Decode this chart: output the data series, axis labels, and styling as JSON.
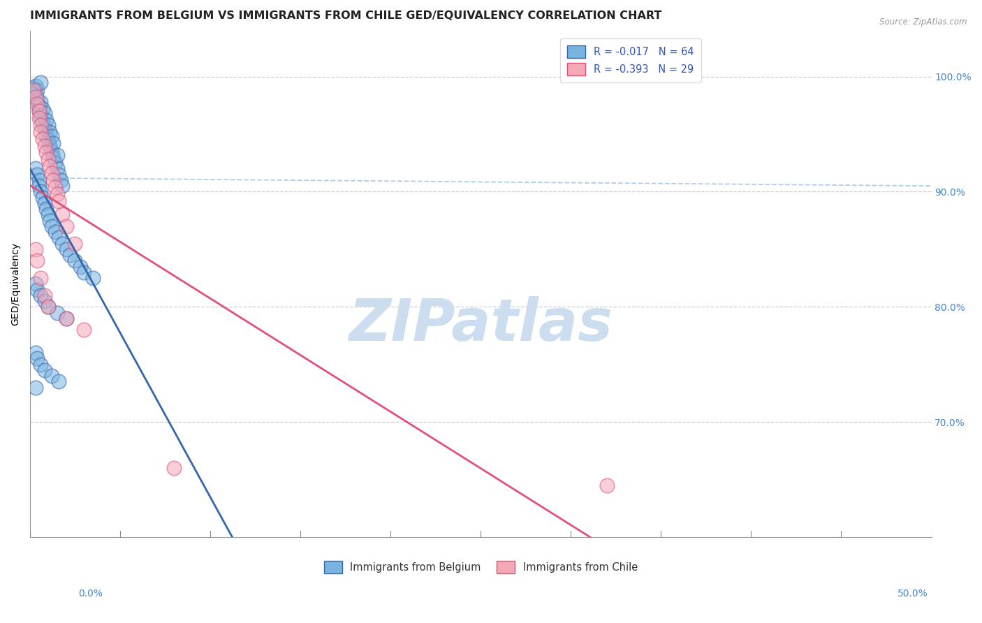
{
  "title": "IMMIGRANTS FROM BELGIUM VS IMMIGRANTS FROM CHILE GED/EQUIVALENCY CORRELATION CHART",
  "source": "Source: ZipAtlas.com",
  "ylabel": "GED/Equivalency",
  "ylabel_right_labels": [
    "100.0%",
    "90.0%",
    "80.0%",
    "70.0%"
  ],
  "ylabel_right_values": [
    1.0,
    0.9,
    0.8,
    0.7
  ],
  "xlim": [
    0.0,
    0.5
  ],
  "ylim": [
    0.6,
    1.04
  ],
  "legend_blue_label": "R = -0.017   N = 64",
  "legend_pink_label": "R = -0.393   N = 29",
  "bottom_legend_blue": "Immigrants from Belgium",
  "bottom_legend_pink": "Immigrants from Chile",
  "watermark": "ZIPatlas",
  "blue_color": "#7ab3e0",
  "pink_color": "#f4a8b8",
  "blue_line_color": "#3366aa",
  "pink_line_color": "#e0507a",
  "dashed_line_color": "#aaccee",
  "grid_color": "#cccccc",
  "background_color": "#ffffff",
  "title_fontsize": 11.5,
  "axis_label_fontsize": 10,
  "tick_fontsize": 10,
  "watermark_color": "#ccddef",
  "blue_scatter_x": [
    0.002,
    0.003,
    0.003,
    0.004,
    0.004,
    0.005,
    0.005,
    0.006,
    0.006,
    0.006,
    0.007,
    0.007,
    0.008,
    0.008,
    0.009,
    0.009,
    0.01,
    0.01,
    0.011,
    0.011,
    0.012,
    0.012,
    0.013,
    0.013,
    0.014,
    0.015,
    0.015,
    0.016,
    0.017,
    0.018,
    0.003,
    0.004,
    0.005,
    0.005,
    0.006,
    0.007,
    0.008,
    0.009,
    0.01,
    0.011,
    0.012,
    0.014,
    0.016,
    0.018,
    0.02,
    0.022,
    0.025,
    0.028,
    0.03,
    0.035,
    0.003,
    0.004,
    0.006,
    0.008,
    0.01,
    0.015,
    0.02,
    0.003,
    0.004,
    0.006,
    0.008,
    0.012,
    0.016,
    0.003
  ],
  "blue_scatter_y": [
    0.99,
    0.985,
    0.992,
    0.988,
    0.98,
    0.975,
    0.97,
    0.995,
    0.978,
    0.965,
    0.96,
    0.972,
    0.955,
    0.968,
    0.948,
    0.962,
    0.945,
    0.958,
    0.94,
    0.952,
    0.935,
    0.948,
    0.93,
    0.942,
    0.925,
    0.92,
    0.932,
    0.915,
    0.91,
    0.905,
    0.92,
    0.915,
    0.91,
    0.905,
    0.9,
    0.895,
    0.89,
    0.885,
    0.88,
    0.875,
    0.87,
    0.865,
    0.86,
    0.855,
    0.85,
    0.845,
    0.84,
    0.835,
    0.83,
    0.825,
    0.82,
    0.815,
    0.81,
    0.805,
    0.8,
    0.795,
    0.79,
    0.76,
    0.755,
    0.75,
    0.745,
    0.74,
    0.735,
    0.73
  ],
  "pink_scatter_x": [
    0.002,
    0.003,
    0.004,
    0.005,
    0.005,
    0.006,
    0.006,
    0.007,
    0.008,
    0.009,
    0.01,
    0.011,
    0.012,
    0.013,
    0.014,
    0.015,
    0.016,
    0.018,
    0.02,
    0.025,
    0.003,
    0.004,
    0.006,
    0.008,
    0.01,
    0.02,
    0.03,
    0.08,
    0.32
  ],
  "pink_scatter_y": [
    0.988,
    0.982,
    0.976,
    0.97,
    0.964,
    0.958,
    0.952,
    0.946,
    0.94,
    0.934,
    0.928,
    0.922,
    0.916,
    0.91,
    0.904,
    0.898,
    0.892,
    0.88,
    0.87,
    0.855,
    0.85,
    0.84,
    0.825,
    0.81,
    0.8,
    0.79,
    0.78,
    0.66,
    0.645
  ],
  "x_tick_positions": [
    0.0,
    0.5
  ],
  "x_tick_labels": [
    "0.0%",
    "50.0%"
  ]
}
